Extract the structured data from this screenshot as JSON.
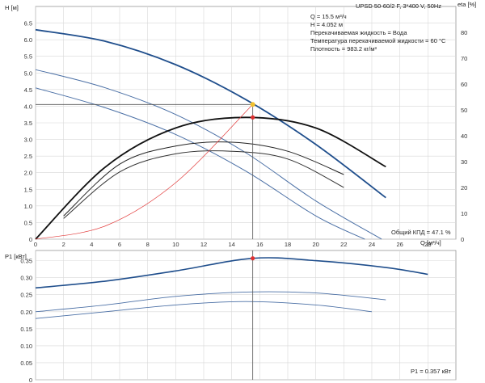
{
  "header": {
    "title": "UPSD 50-60/2 F, 3*400 V, 50Hz",
    "info": [
      "Q = 15.5 м³/ч",
      "H = 4.052 м",
      "Перекачиваемая жидкость = Вода",
      "Температура перекачиваемой жидкости = 60 °C",
      "Плотность = 983.2 кг/м³"
    ]
  },
  "chart_data": [
    {
      "type": "line",
      "xlabel": "Q [м³/ч]",
      "ylabel": "H [м]",
      "y2label": "eta [%]",
      "xlim": [
        0,
        30
      ],
      "ylim": [
        0,
        7
      ],
      "y2lim": [
        0,
        90
      ],
      "x_ticks": [
        0,
        2,
        4,
        6,
        8,
        10,
        12,
        14,
        16,
        18,
        20,
        22,
        24,
        26,
        28
      ],
      "y_ticks": [
        "0",
        "0.5",
        "1.0",
        "1.5",
        "2.0",
        "2.5",
        "3.0",
        "3.5",
        "4.0",
        "4.5",
        "5.0",
        "5.5",
        "6.0",
        "6.5"
      ],
      "y2_ticks": [
        "0",
        "10",
        "20",
        "30",
        "40",
        "50",
        "60",
        "70",
        "80"
      ],
      "grid": true,
      "series": [
        {
          "role": "head-speed-1",
          "color": "#1f4e8c",
          "x": [
            0,
            5,
            10,
            15,
            20,
            25
          ],
          "values": [
            6.3,
            5.95,
            5.25,
            4.2,
            2.85,
            1.25
          ]
        },
        {
          "role": "head-speed-2",
          "color": "#4a6fa5",
          "x": [
            0,
            5,
            10,
            15,
            20,
            24.7
          ],
          "values": [
            5.1,
            4.55,
            3.75,
            2.6,
            1.15,
            0.0
          ]
        },
        {
          "role": "head-speed-3",
          "color": "#4a6fa5",
          "x": [
            0,
            5,
            10,
            15,
            20,
            23.5
          ],
          "values": [
            4.55,
            3.95,
            3.15,
            2.05,
            0.7,
            0.0
          ]
        },
        {
          "role": "eff-speed-1",
          "color": "#111111",
          "x": [
            0,
            5,
            10,
            15,
            20,
            25
          ],
          "eta_values": [
            0,
            28,
            43,
            47.1,
            43,
            28
          ]
        },
        {
          "role": "eff-speed-2",
          "color": "#222222",
          "x": [
            2,
            6,
            10,
            14,
            18,
            22
          ],
          "eta_values": [
            9,
            29,
            36,
            37.5,
            34,
            25
          ]
        },
        {
          "role": "eff-speed-3",
          "color": "#333333",
          "x": [
            2,
            6,
            10,
            14,
            18,
            22
          ],
          "eta_values": [
            8,
            26,
            33,
            34,
            31,
            20
          ]
        },
        {
          "role": "system-curve",
          "color": "#e23b3b",
          "x": [
            0,
            5,
            10,
            15.5
          ],
          "values": [
            0,
            0.4,
            1.7,
            4.052
          ]
        }
      ],
      "operating_point": {
        "q": 15.5,
        "h": 4.052,
        "eta": 47.1
      },
      "annotation": "Общий КПД = 47.1 %"
    },
    {
      "type": "line",
      "ylabel": "P1 [кВт]",
      "xlim": [
        0,
        30
      ],
      "ylim": [
        0,
        0.38
      ],
      "y_ticks": [
        "0",
        "0.05",
        "0.10",
        "0.15",
        "0.20",
        "0.25",
        "0.30",
        "0.35"
      ],
      "grid": true,
      "series": [
        {
          "role": "power-speed-1",
          "color": "#1f4e8c",
          "x": [
            0,
            5,
            10,
            15.5,
            20,
            25,
            28
          ],
          "values": [
            0.27,
            0.29,
            0.32,
            0.357,
            0.35,
            0.33,
            0.31
          ]
        },
        {
          "role": "power-speed-2",
          "color": "#4a6fa5",
          "x": [
            0,
            5,
            10,
            15,
            20,
            25
          ],
          "values": [
            0.2,
            0.22,
            0.245,
            0.258,
            0.255,
            0.235
          ]
        },
        {
          "role": "power-speed-3",
          "color": "#4a6fa5",
          "x": [
            0,
            5,
            10,
            15,
            20,
            24
          ],
          "values": [
            0.18,
            0.2,
            0.22,
            0.23,
            0.22,
            0.2
          ]
        }
      ],
      "operating_point": {
        "q": 15.5,
        "p": 0.357
      },
      "annotation": "P1 = 0.357 кВт"
    }
  ],
  "colors": {
    "operating_point_top": "#f2c12e",
    "operating_point": "#e03030",
    "crosshair": "#555555"
  }
}
